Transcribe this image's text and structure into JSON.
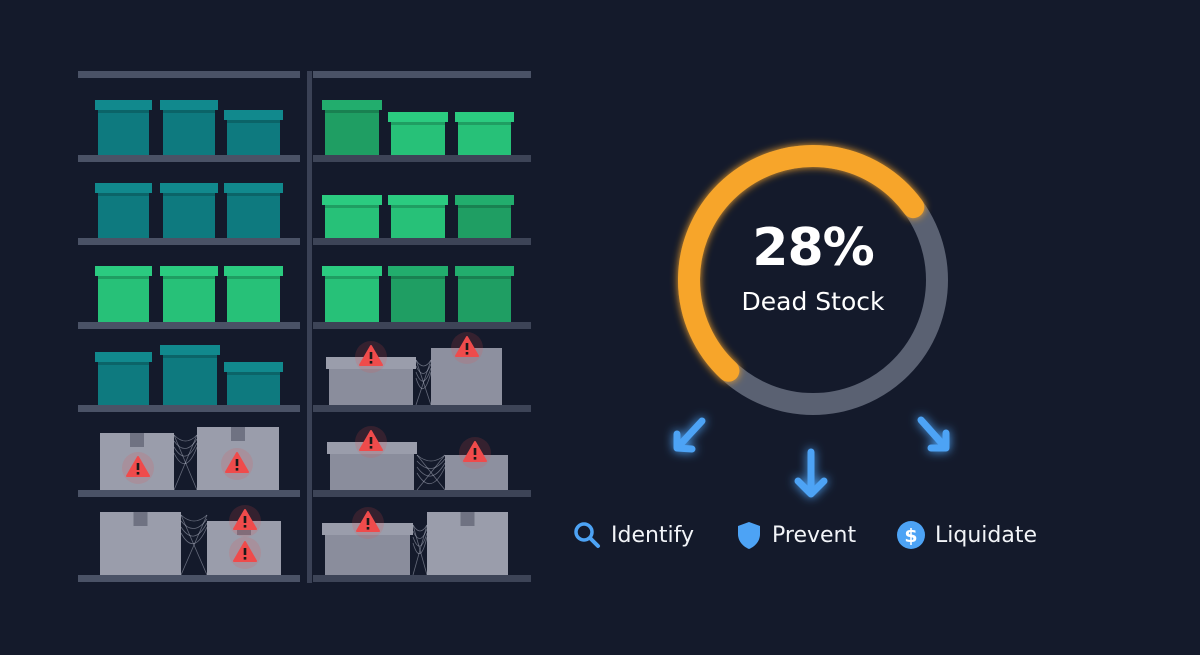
{
  "stat": {
    "value": "28%",
    "label": "Dead Stock",
    "progress_color": "#f7a52b",
    "track_color": "#5a6172"
  },
  "actions": [
    {
      "icon": "magnifier-icon",
      "label": "Identify"
    },
    {
      "icon": "shield-icon",
      "label": "Prevent"
    },
    {
      "icon": "dollar-coin-icon",
      "label": "Liquidate"
    }
  ],
  "colors": {
    "background": "#141a2b",
    "accent_blue": "#4da3f5",
    "warning_red": "#ef4b4b",
    "active_teal": "#0e7a7f",
    "active_green": "#27c178",
    "dead_stock_gray": "#8d909f"
  }
}
